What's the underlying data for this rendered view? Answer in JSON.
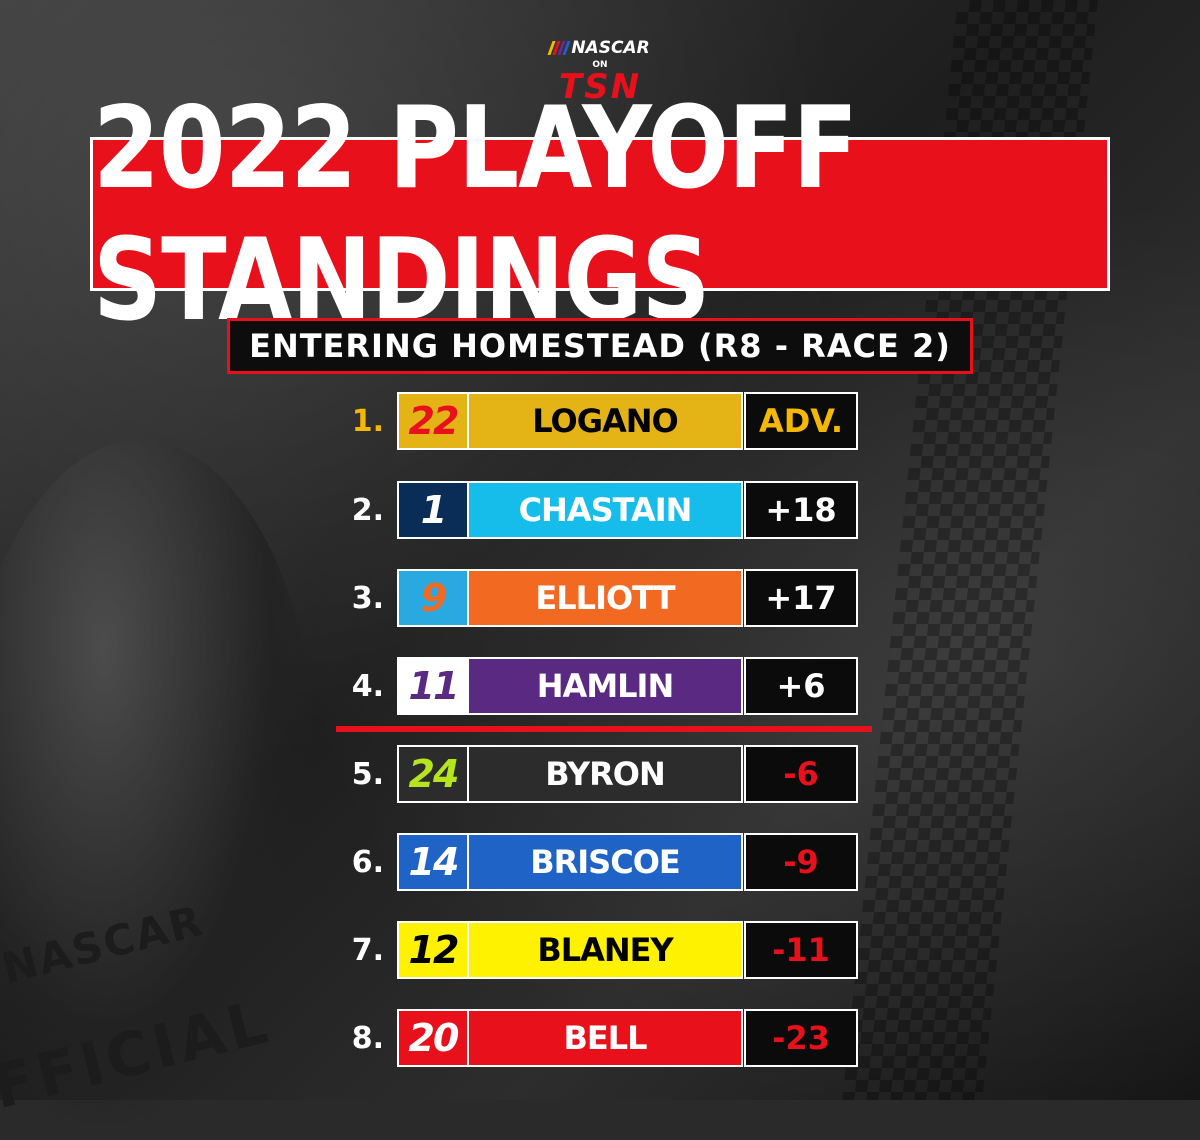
{
  "logo": {
    "nascar": "NASCAR",
    "on": "ON",
    "tsn": "TSN",
    "stripe_colors": [
      "#f5b800",
      "#e8111b",
      "#6a2a8c",
      "#1e5fd0"
    ]
  },
  "title": "2022 PLAYOFF STANDINGS",
  "subtitle": "ENTERING HOMESTEAD (R8 - RACE 2)",
  "colors": {
    "title_bg": "#e8111b",
    "subtitle_border": "#e8111b",
    "cutline": "#e8111b",
    "positive_points": "#ffffff",
    "negative_points": "#e8111b",
    "advanced": "#f5b800"
  },
  "jacket": {
    "line1": "NASCAR",
    "line2": "FFICIAL"
  },
  "standings": [
    {
      "pos": "1.",
      "car": "22",
      "driver": "LOGANO",
      "points": "ADV.",
      "name_bg": "#e4b416",
      "name_color": "#000000",
      "num_bg": "#e4b416",
      "num_color": "#e8111b",
      "pos_color": "#f5b800",
      "pts_color": "#f5b800"
    },
    {
      "pos": "2.",
      "car": "1",
      "driver": "CHASTAIN",
      "points": "+18",
      "name_bg": "#17bdea",
      "name_color": "#ffffff",
      "num_bg": "#0a2d57",
      "num_color": "#ffffff",
      "pos_color": "#ffffff",
      "pts_color": "#ffffff"
    },
    {
      "pos": "3.",
      "car": "9",
      "driver": "ELLIOTT",
      "points": "+17",
      "name_bg": "#f26a21",
      "name_color": "#ffffff",
      "num_bg": "#29a9e0",
      "num_color": "#f26a21",
      "pos_color": "#ffffff",
      "pts_color": "#ffffff"
    },
    {
      "pos": "4.",
      "car": "11",
      "driver": "HAMLIN",
      "points": "+6",
      "name_bg": "#5a2a82",
      "name_color": "#ffffff",
      "num_bg": "#ffffff",
      "num_color": "#5a2a82",
      "pos_color": "#ffffff",
      "pts_color": "#ffffff"
    },
    {
      "pos": "5.",
      "car": "24",
      "driver": "BYRON",
      "points": "-6",
      "name_bg": "#2c2c2c",
      "name_color": "#ffffff",
      "num_bg": "#2c2c2c",
      "num_color": "#b5e61d",
      "pos_color": "#ffffff",
      "pts_color": "#e8111b"
    },
    {
      "pos": "6.",
      "car": "14",
      "driver": "BRISCOE",
      "points": "-9",
      "name_bg": "#1f63c6",
      "name_color": "#ffffff",
      "num_bg": "#1f63c6",
      "num_color": "#ffffff",
      "pos_color": "#ffffff",
      "pts_color": "#e8111b"
    },
    {
      "pos": "7.",
      "car": "12",
      "driver": "BLANEY",
      "points": "-11",
      "name_bg": "#fff200",
      "name_color": "#000000",
      "num_bg": "#fff200",
      "num_color": "#000000",
      "pos_color": "#ffffff",
      "pts_color": "#e8111b"
    },
    {
      "pos": "8.",
      "car": "20",
      "driver": "BELL",
      "points": "-23",
      "name_bg": "#e8111b",
      "name_color": "#ffffff",
      "num_bg": "#e8111b",
      "num_color": "#ffffff",
      "pos_color": "#ffffff",
      "pts_color": "#e8111b"
    }
  ]
}
